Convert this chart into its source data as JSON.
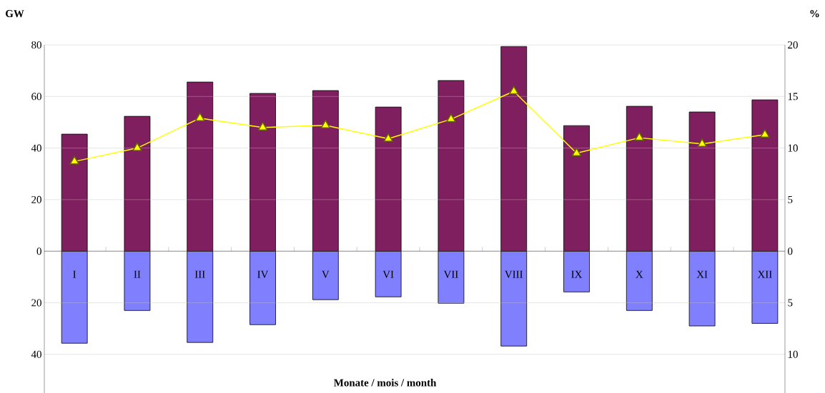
{
  "chart_data": {
    "type": "bar",
    "xlabel": "Monate /  mois / month",
    "ylabel": "GW",
    "y2label": "%",
    "categories": [
      "I",
      "II",
      "III",
      "IV",
      "V",
      "VI",
      "VII",
      "VIII",
      "IX",
      "X",
      "XI",
      "XII"
    ],
    "series": [
      {
        "color": "#7f1f5f",
        "values": [
          45.4,
          52.3,
          65.6,
          61.2,
          62.3,
          55.9,
          66.2,
          79.4,
          48.7,
          56.2,
          54,
          58.7
        ]
      },
      {
        "color": "#8080ff",
        "values": [
          -35.7,
          -23,
          -35.4,
          -28.5,
          -18.8,
          -17.7,
          -20.2,
          -36.8,
          -15.8,
          -23,
          -29,
          -28
        ]
      },
      {
        "type": "line",
        "axis": "y2",
        "color": "#ffff00",
        "values": [
          8.7,
          10.0,
          12.9,
          12.0,
          12.2,
          10.9,
          12.8,
          15.5,
          9.5,
          11.0,
          10.4,
          11.3
        ]
      }
    ],
    "marker": "triangle",
    "stacked": true,
    "ylim": [
      -55,
      80
    ],
    "yticks": [
      {
        "value": -40,
        "label": "40"
      },
      {
        "value": -20,
        "label": "20"
      },
      0,
      20,
      40,
      60,
      80
    ],
    "y2lim": [
      -13.75,
      20
    ],
    "y2ticks": [
      {
        "value": -10,
        "label": "10"
      },
      {
        "value": -5,
        "label": "5"
      },
      0,
      5,
      10,
      15,
      20
    ],
    "grid": "y"
  }
}
